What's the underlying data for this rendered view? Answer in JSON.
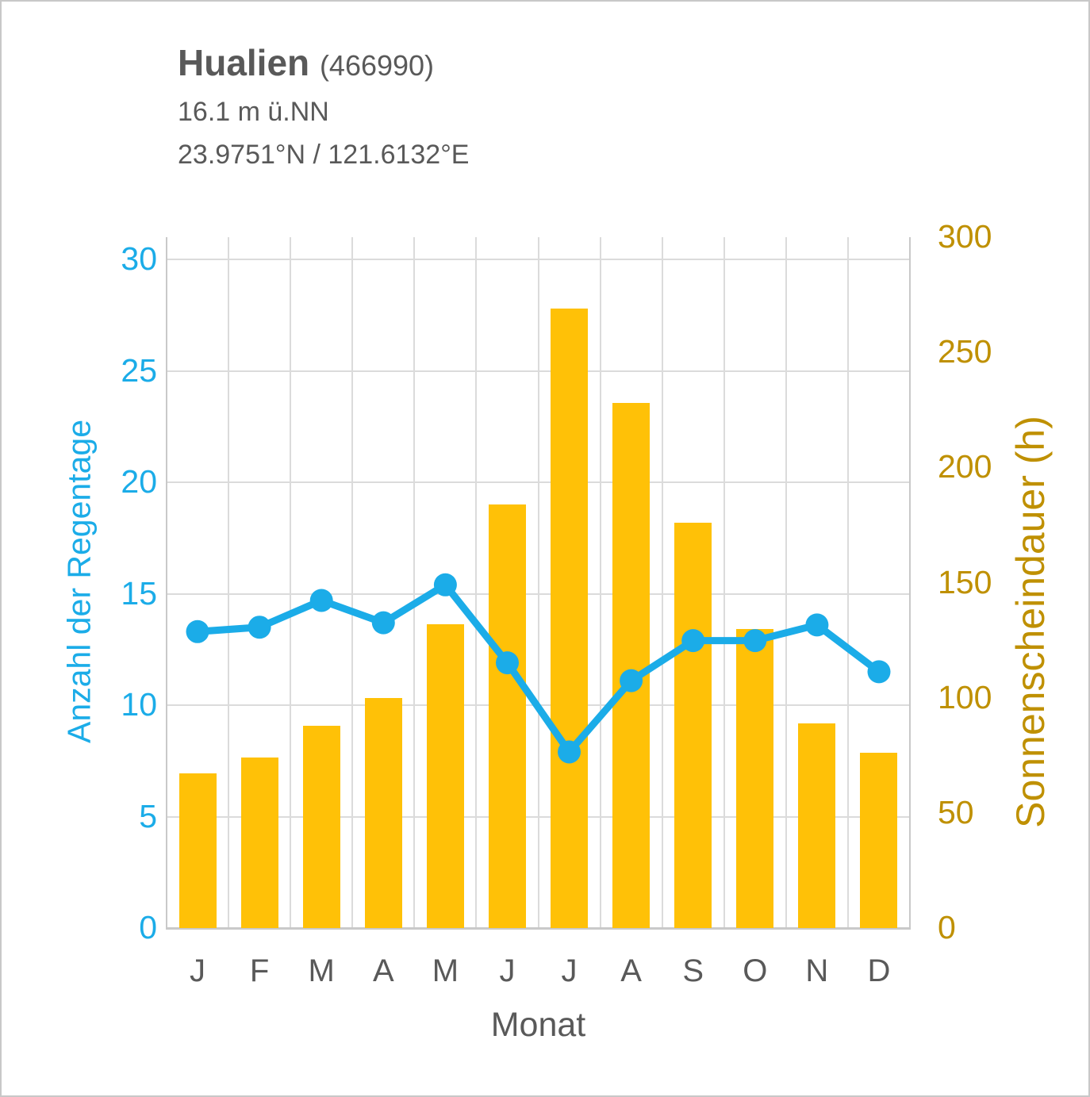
{
  "header": {
    "title": "Hualien",
    "station_id": "(466990)",
    "elevation": "16.1 m ü.NN",
    "coordinates": "23.9751°N / 121.6132°E"
  },
  "chart_data": {
    "type": "bar+line",
    "categories": [
      "J",
      "F",
      "M",
      "A",
      "M",
      "J",
      "J",
      "A",
      "S",
      "O",
      "N",
      "D"
    ],
    "series": [
      {
        "name": "Sonnenscheindauer (h)",
        "type": "bar",
        "axis": "right",
        "color": "#ffc107",
        "values": [
          67,
          74,
          88,
          100,
          132,
          184,
          269,
          228,
          176,
          130,
          89,
          76
        ]
      },
      {
        "name": "Anzahl der Regentage",
        "type": "line",
        "axis": "left",
        "color": "#1bace8",
        "values": [
          13.3,
          13.5,
          14.7,
          13.7,
          15.4,
          11.9,
          7.9,
          11.1,
          12.9,
          12.9,
          13.6,
          11.5
        ]
      }
    ],
    "xlabel": "Monat",
    "axes": {
      "left": {
        "title": "Anzahl der Regentage",
        "ticks": [
          0,
          5,
          10,
          15,
          20,
          25,
          30
        ],
        "range": [
          0,
          31
        ],
        "color": "#1bace8"
      },
      "right": {
        "title": "Sonnenscheindauer (h)",
        "ticks": [
          0,
          50,
          100,
          150,
          200,
          250,
          300
        ],
        "range": [
          0,
          300
        ],
        "color": "#bf9000"
      }
    },
    "grid": true,
    "legend": "none"
  },
  "colors": {
    "heading_text": "#595959",
    "gridline": "#dbdbdb",
    "plot_border": "#c9c9c9",
    "frame_border": "#c8c8c8"
  }
}
